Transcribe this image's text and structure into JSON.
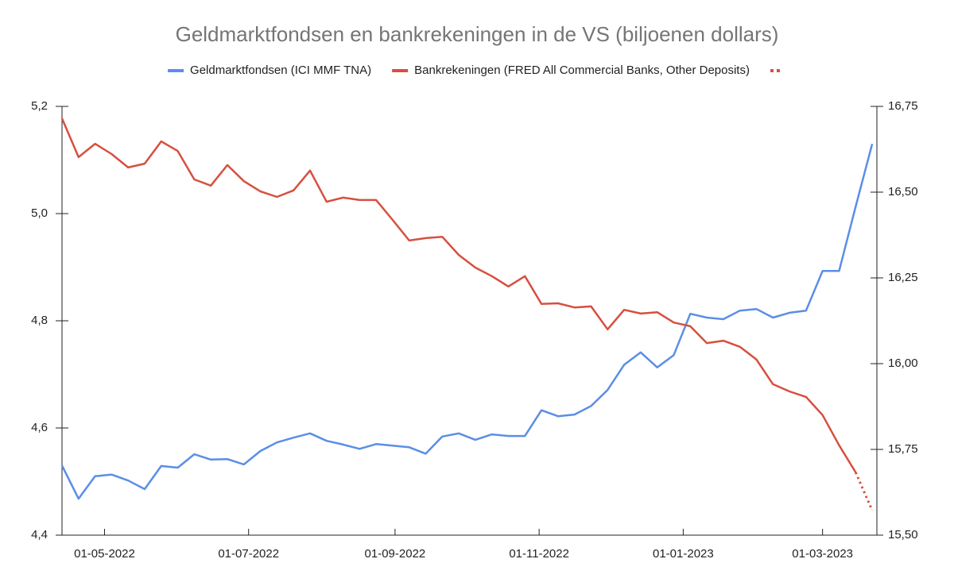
{
  "chart_data": {
    "type": "line",
    "title": "Geldmarktfondsen en bankrekeningen in de VS (biljoenen dollars)",
    "x": [
      "2022-04-13",
      "2022-04-20",
      "2022-04-27",
      "2022-05-04",
      "2022-05-11",
      "2022-05-18",
      "2022-05-25",
      "2022-06-01",
      "2022-06-08",
      "2022-06-15",
      "2022-06-22",
      "2022-06-29",
      "2022-07-06",
      "2022-07-13",
      "2022-07-20",
      "2022-07-27",
      "2022-08-03",
      "2022-08-10",
      "2022-08-17",
      "2022-08-24",
      "2022-08-31",
      "2022-09-07",
      "2022-09-14",
      "2022-09-21",
      "2022-09-28",
      "2022-10-05",
      "2022-10-12",
      "2022-10-19",
      "2022-10-26",
      "2022-11-02",
      "2022-11-09",
      "2022-11-16",
      "2022-11-23",
      "2022-11-30",
      "2022-12-07",
      "2022-12-14",
      "2022-12-21",
      "2022-12-28",
      "2023-01-04",
      "2023-01-11",
      "2023-01-18",
      "2023-01-25",
      "2023-02-01",
      "2023-02-08",
      "2023-02-15",
      "2023-02-22",
      "2023-03-01",
      "2023-03-08",
      "2023-03-15",
      "2023-03-22"
    ],
    "xlim": [
      "2022-04-13",
      "2023-03-24"
    ],
    "xticks": [
      {
        "value": "2022-05-01",
        "label": "01-05-2022"
      },
      {
        "value": "2022-07-01",
        "label": "01-07-2022"
      },
      {
        "value": "2022-09-01",
        "label": "01-09-2022"
      },
      {
        "value": "2022-11-01",
        "label": "01-11-2022"
      },
      {
        "value": "2023-01-01",
        "label": "01-01-2023"
      },
      {
        "value": "2023-03-01",
        "label": "01-03-2023"
      }
    ],
    "ylim": [
      4.4,
      5.2
    ],
    "yticks": [
      {
        "value": 4.4,
        "label": "4,4"
      },
      {
        "value": 4.6,
        "label": "4,6"
      },
      {
        "value": 4.8,
        "label": "4,8"
      },
      {
        "value": 5.0,
        "label": "5,0"
      },
      {
        "value": 5.2,
        "label": "5,2"
      }
    ],
    "y2lim": [
      15.5,
      16.75
    ],
    "y2ticks": [
      {
        "value": 15.5,
        "label": "15,50"
      },
      {
        "value": 15.75,
        "label": "15,75"
      },
      {
        "value": 16.0,
        "label": "16,00"
      },
      {
        "value": 16.25,
        "label": "16,25"
      },
      {
        "value": 16.5,
        "label": "16,50"
      },
      {
        "value": 16.75,
        "label": "16,75"
      }
    ],
    "legend": "top",
    "series": [
      {
        "name": "Geldmarktfondsen (ICI MMF TNA)",
        "color": "#5b8ee6",
        "axis": "y",
        "values": [
          4.53,
          4.468,
          4.51,
          4.513,
          4.502,
          4.486,
          4.529,
          4.526,
          4.551,
          4.541,
          4.542,
          4.532,
          4.557,
          4.573,
          4.582,
          4.59,
          4.576,
          4.569,
          4.561,
          4.57,
          4.567,
          4.564,
          4.552,
          4.584,
          4.59,
          4.578,
          4.588,
          4.585,
          4.585,
          4.633,
          4.622,
          4.625,
          4.641,
          4.671,
          4.718,
          4.741,
          4.713,
          4.736,
          4.813,
          4.806,
          4.803,
          4.819,
          4.822,
          4.806,
          4.815,
          4.819,
          4.893,
          4.893,
          5.013,
          5.13
        ]
      },
      {
        "name": "Bankrekeningen (FRED All Commercial Banks, Other Deposits)",
        "color": "#d6503f",
        "axis": "y2",
        "values": [
          16.715,
          16.602,
          16.641,
          16.611,
          16.572,
          16.583,
          16.648,
          16.62,
          16.537,
          16.519,
          16.579,
          16.532,
          16.502,
          16.486,
          16.505,
          16.563,
          16.472,
          16.484,
          16.477,
          16.477,
          16.419,
          16.359,
          16.366,
          16.37,
          16.317,
          16.28,
          16.255,
          16.225,
          16.255,
          16.174,
          16.176,
          16.164,
          16.167,
          16.1,
          16.157,
          16.146,
          16.15,
          16.12,
          16.109,
          16.06,
          16.067,
          16.049,
          16.012,
          15.94,
          15.919,
          15.903,
          15.85,
          15.762,
          15.683,
          null
        ]
      },
      {
        "color": "#d6503f",
        "axis": "y2",
        "dash": "dotted",
        "values": [
          null,
          null,
          null,
          null,
          null,
          null,
          null,
          null,
          null,
          null,
          null,
          null,
          null,
          null,
          null,
          null,
          null,
          null,
          null,
          null,
          null,
          null,
          null,
          null,
          null,
          null,
          null,
          null,
          null,
          null,
          null,
          null,
          null,
          null,
          null,
          null,
          null,
          null,
          null,
          null,
          null,
          null,
          null,
          null,
          null,
          null,
          null,
          null,
          15.683,
          15.572
        ]
      }
    ]
  }
}
